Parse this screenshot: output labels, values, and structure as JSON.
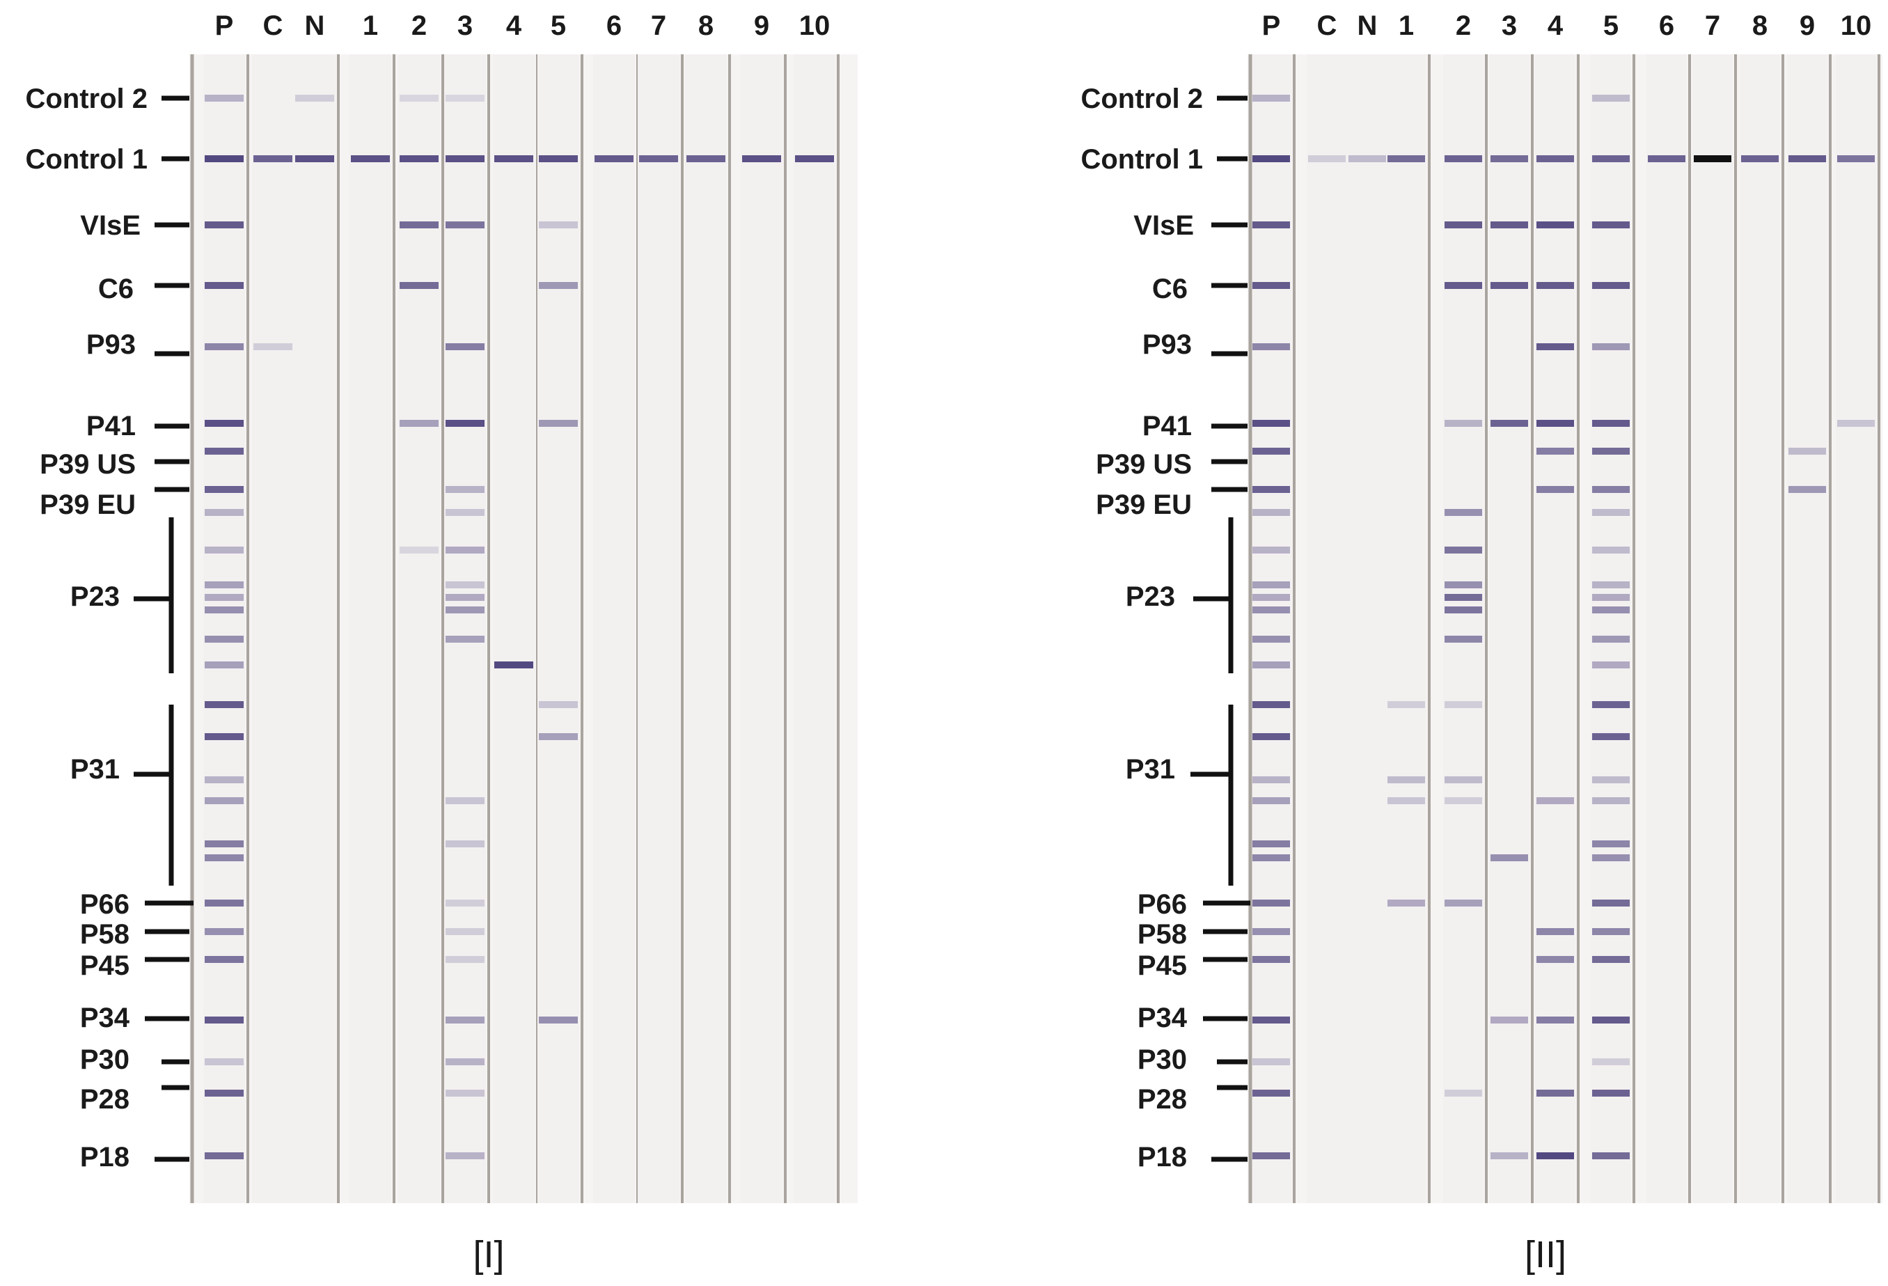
{
  "panels": [
    {
      "caption": "[I]",
      "lanes": [
        "P",
        "C",
        "N",
        "1",
        "2",
        "3",
        "4",
        "5",
        "6",
        "7",
        "8",
        "9",
        "10"
      ],
      "markers": [
        {
          "label": "Control 2"
        },
        {
          "label": "Control 1"
        },
        {
          "label": "VIsE"
        },
        {
          "label": "C6"
        },
        {
          "label": "P93"
        },
        {
          "label": "P41"
        },
        {
          "label": "P39 US"
        },
        {
          "label": "P39 EU"
        },
        {
          "label": "P23"
        },
        {
          "label": "P31"
        },
        {
          "label": "P66"
        },
        {
          "label": "P58"
        },
        {
          "label": "P45"
        },
        {
          "label": "P34"
        },
        {
          "label": "P30"
        },
        {
          "label": "P28"
        },
        {
          "label": "P18"
        }
      ]
    },
    {
      "caption": "[II]",
      "lanes": [
        "P",
        "C",
        "N",
        "1",
        "2",
        "3",
        "4",
        "5",
        "6",
        "7",
        "8",
        "9",
        "10"
      ],
      "markers": [
        {
          "label": "Control 2"
        },
        {
          "label": "Control 1"
        },
        {
          "label": "VIsE"
        },
        {
          "label": "C6"
        },
        {
          "label": "P93"
        },
        {
          "label": "P41"
        },
        {
          "label": "P39 US"
        },
        {
          "label": "P39 EU"
        },
        {
          "label": "P23"
        },
        {
          "label": "P31"
        },
        {
          "label": "P66"
        },
        {
          "label": "P58"
        },
        {
          "label": "P45"
        },
        {
          "label": "P34"
        },
        {
          "label": "P30"
        },
        {
          "label": "P28"
        },
        {
          "label": "P18"
        }
      ]
    }
  ],
  "colors": {
    "band": "#4a3f7a",
    "strip_bg": "#f3f0f0",
    "strip_edge": "#a9a49e",
    "text": "#1a1a1a"
  }
}
